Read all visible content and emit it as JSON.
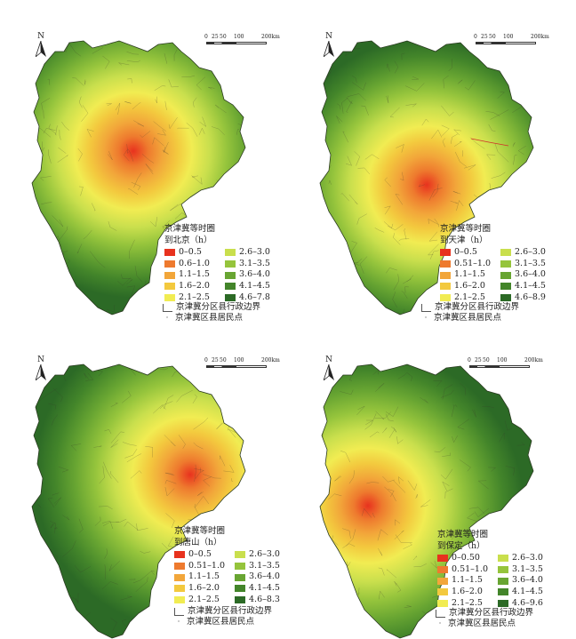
{
  "north_label": "N",
  "scale": {
    "ticks": [
      "0",
      "25",
      "50",
      "100",
      "200km"
    ]
  },
  "colors": [
    "#e8321e",
    "#ee7a2e",
    "#f2a63a",
    "#f3c93e",
    "#f1ec52",
    "#c9df4d",
    "#95c43c",
    "#68a532",
    "#43852a",
    "#2c6a26"
  ],
  "panels": [
    {
      "title_line1": "京津冀等时圈",
      "title_line2": "到北京（h）",
      "classes": [
        "0–0.5",
        "0.6–1.0",
        "1.1–1.5",
        "1.6–2.0",
        "2.1–2.5",
        "2.6–3.0",
        "3.1–3.5",
        "3.6–4.0",
        "4.1–4.5",
        "4.6–7.8"
      ],
      "boundary": "京津冀分区县行政边界",
      "settlement": "京津冀区县居民点"
    },
    {
      "title_line1": "京津冀等时圈",
      "title_line2": "到天津（h）",
      "classes": [
        "0–0.5",
        "0.51–1.0",
        "1.1–1.5",
        "1.6–2.0",
        "2.1–2.5",
        "2.6–3.0",
        "3.1–3.5",
        "3.6–4.0",
        "4.1–4.5",
        "4.6–8.9"
      ],
      "boundary": "京津冀分区县行政边界",
      "settlement": "京津冀区县居民点"
    },
    {
      "title_line1": "京津冀等时圈",
      "title_line2": "到唐山（h）",
      "classes": [
        "0–0.5",
        "0.51–1.0",
        "1.1–1.5",
        "1.6–2.0",
        "2.1–2.5",
        "2.6–3.0",
        "3.1–3.5",
        "3.6–4.0",
        "4.1–4.5",
        "4.6–8.3"
      ],
      "boundary": "京津冀分区县行政边界",
      "settlement": "京津冀区县居民点"
    },
    {
      "title_line1": "京津冀等时圈",
      "title_line2": "到保定（h）",
      "classes": [
        "0–0.50",
        "0.51–1.0",
        "1.1–1.5",
        "1.6–2.0",
        "2.1–2.5",
        "2.6–3.0",
        "3.1–3.5",
        "3.6–4.0",
        "4.1–4.5",
        "4.6–9.6"
      ],
      "boundary": "京津冀分区县行政边界",
      "settlement": "京津冀区县居民点"
    }
  ]
}
